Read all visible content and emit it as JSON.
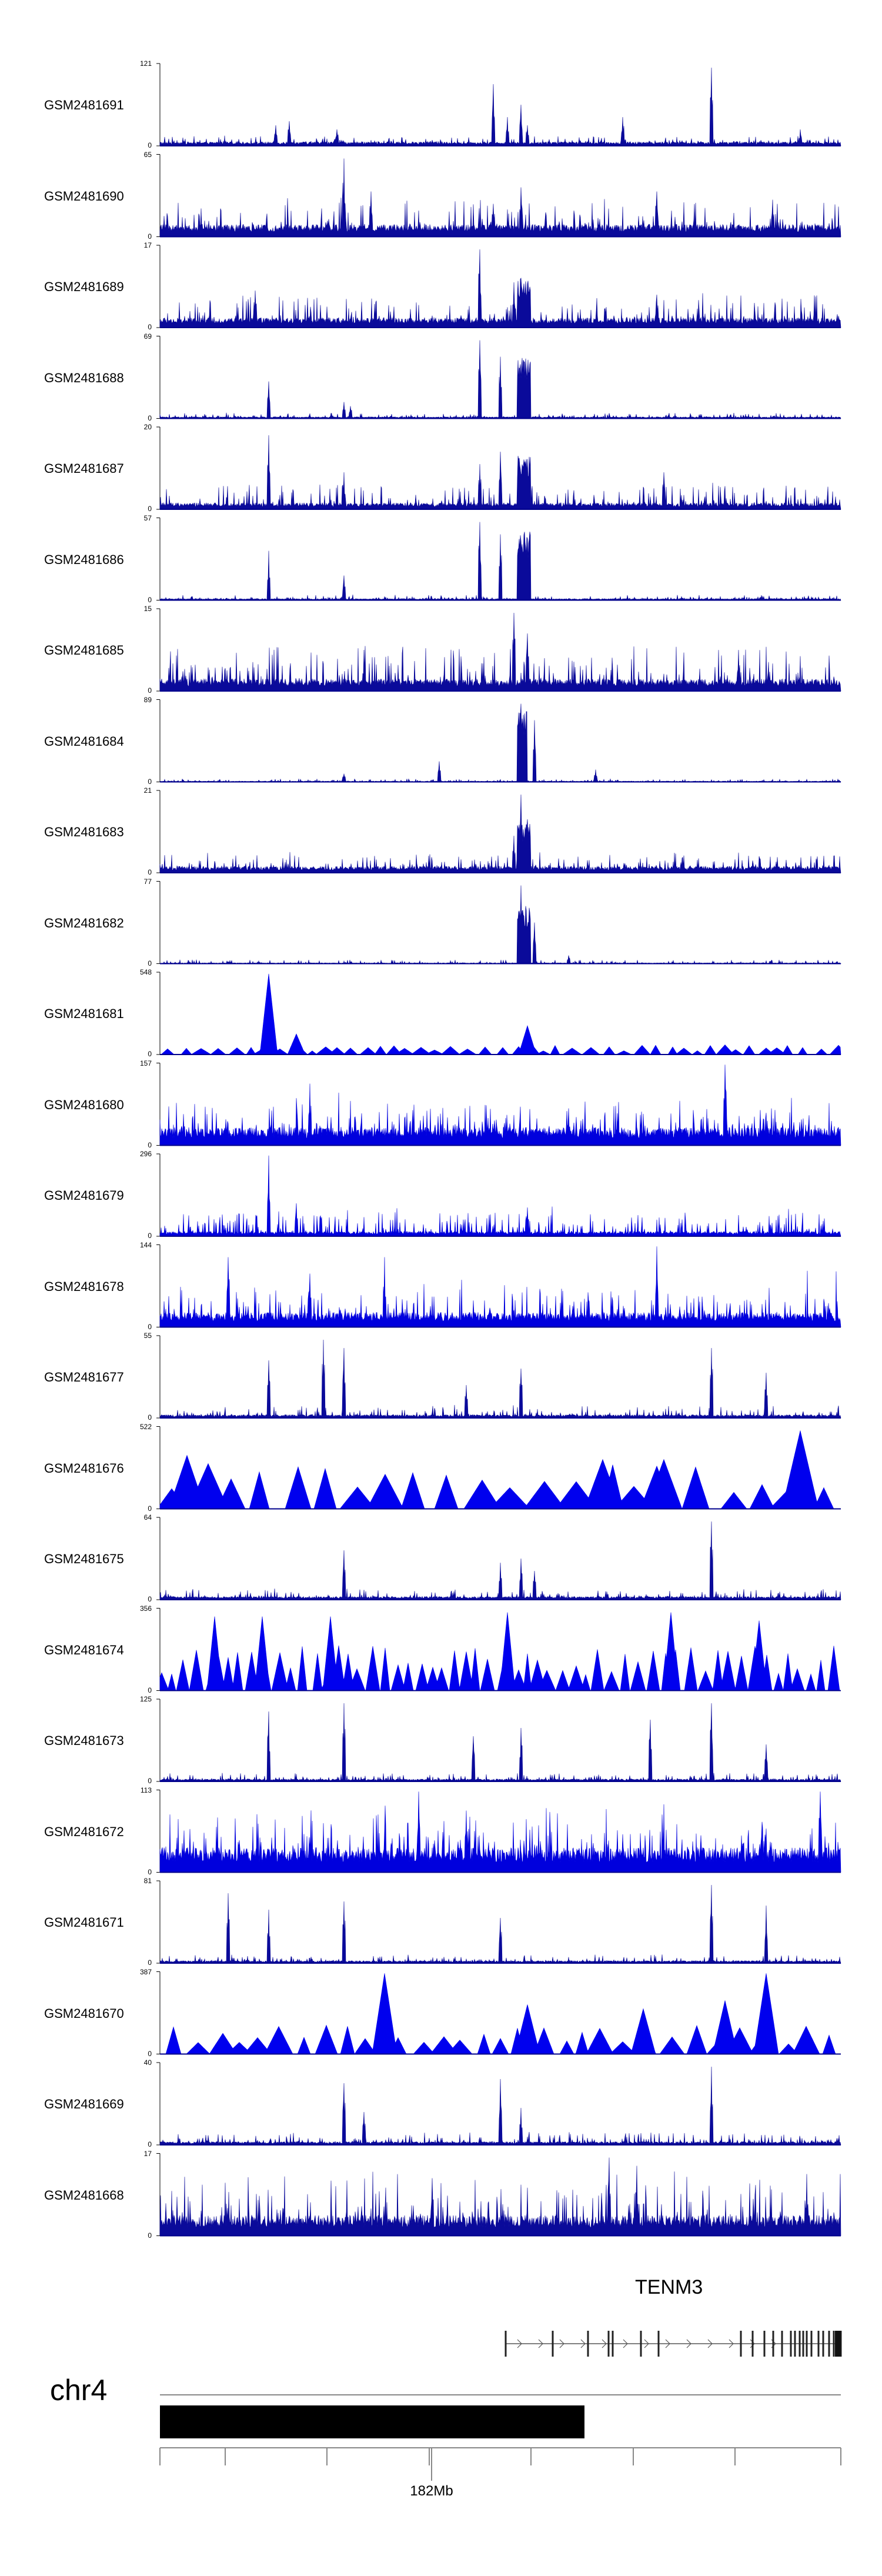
{
  "chart_data": {
    "type": "genome-browser-tracks",
    "chromosome": "chr4",
    "gene": "TENM3",
    "scale_tick_label": "182Mb",
    "tracks": [
      {
        "name": "GSM2481691",
        "ymax": "121",
        "ymin": "0",
        "style": "bars",
        "base": 0.05,
        "noise": 0.08,
        "peaks": [
          [
            0.17,
            0.25
          ],
          [
            0.19,
            0.3
          ],
          [
            0.26,
            0.2
          ],
          [
            0.49,
            0.75
          ],
          [
            0.51,
            0.35
          ],
          [
            0.53,
            0.5
          ],
          [
            0.54,
            0.25
          ],
          [
            0.68,
            0.35
          ],
          [
            0.81,
            0.95
          ],
          [
            0.94,
            0.2
          ]
        ],
        "cluster": []
      },
      {
        "name": "GSM2481690",
        "ymax": "65",
        "ymin": "0",
        "style": "dense",
        "base": 0.15,
        "noise": 0.35,
        "peaks": [
          [
            0.27,
            0.95
          ],
          [
            0.31,
            0.55
          ],
          [
            0.49,
            0.4
          ],
          [
            0.53,
            0.6
          ],
          [
            0.73,
            0.55
          ],
          [
            0.9,
            0.45
          ]
        ],
        "cluster": []
      },
      {
        "name": "GSM2481689",
        "ymax": "17",
        "ymin": "0",
        "style": "dense",
        "base": 0.12,
        "noise": 0.3,
        "peaks": [
          [
            0.47,
            0.95
          ],
          [
            0.52,
            0.55
          ],
          [
            0.53,
            0.6
          ],
          [
            0.14,
            0.45
          ],
          [
            0.73,
            0.4
          ]
        ],
        "cluster": [
          [
            0.525,
            0.545,
            0.6
          ]
        ]
      },
      {
        "name": "GSM2481688",
        "ymax": "69",
        "ymin": "0",
        "style": "bars",
        "base": 0.02,
        "noise": 0.05,
        "peaks": [
          [
            0.16,
            0.45
          ],
          [
            0.27,
            0.2
          ],
          [
            0.28,
            0.15
          ],
          [
            0.47,
            0.95
          ],
          [
            0.5,
            0.75
          ]
        ],
        "cluster": [
          [
            0.525,
            0.545,
            0.75
          ]
        ]
      },
      {
        "name": "GSM2481687",
        "ymax": "20",
        "ymin": "0",
        "style": "dense",
        "base": 0.08,
        "noise": 0.25,
        "peaks": [
          [
            0.16,
            0.9
          ],
          [
            0.27,
            0.45
          ],
          [
            0.47,
            0.55
          ],
          [
            0.5,
            0.7
          ],
          [
            0.74,
            0.45
          ]
        ],
        "cluster": [
          [
            0.525,
            0.545,
            0.65
          ]
        ]
      },
      {
        "name": "GSM2481686",
        "ymax": "57",
        "ymin": "0",
        "style": "bars",
        "base": 0.02,
        "noise": 0.05,
        "peaks": [
          [
            0.16,
            0.6
          ],
          [
            0.27,
            0.3
          ],
          [
            0.47,
            0.95
          ],
          [
            0.5,
            0.8
          ]
        ],
        "cluster": [
          [
            0.525,
            0.545,
            0.85
          ]
        ]
      },
      {
        "name": "GSM2481685",
        "ymax": "15",
        "ymin": "0",
        "style": "dense",
        "base": 0.15,
        "noise": 0.45,
        "peaks": [
          [
            0.52,
            0.95
          ],
          [
            0.54,
            0.7
          ],
          [
            0.3,
            0.5
          ],
          [
            0.85,
            0.5
          ]
        ],
        "cluster": []
      },
      {
        "name": "GSM2481684",
        "ymax": "89",
        "ymin": "0",
        "style": "bars",
        "base": 0.01,
        "noise": 0.03,
        "peaks": [
          [
            0.41,
            0.25
          ],
          [
            0.53,
            0.95
          ],
          [
            0.55,
            0.75
          ],
          [
            0.64,
            0.15
          ],
          [
            0.27,
            0.1
          ]
        ],
        "cluster": [
          [
            0.525,
            0.54,
            0.9
          ]
        ]
      },
      {
        "name": "GSM2481683",
        "ymax": "21",
        "ymin": "0",
        "style": "dense",
        "base": 0.08,
        "noise": 0.18,
        "peaks": [
          [
            0.53,
            0.95
          ],
          [
            0.54,
            0.65
          ],
          [
            0.52,
            0.45
          ]
        ],
        "cluster": [
          [
            0.525,
            0.545,
            0.6
          ]
        ]
      },
      {
        "name": "GSM2481682",
        "ymax": "77",
        "ymin": "0",
        "style": "bars",
        "base": 0.01,
        "noise": 0.04,
        "peaks": [
          [
            0.53,
            0.95
          ],
          [
            0.55,
            0.5
          ],
          [
            0.6,
            0.1
          ]
        ],
        "cluster": [
          [
            0.525,
            0.545,
            0.7
          ]
        ]
      },
      {
        "name": "GSM2481681",
        "ymax": "548",
        "ymin": "0",
        "style": "triangles",
        "spacing": 0.022,
        "tri": 0.12,
        "peaks": [
          [
            0.16,
            0.98
          ],
          [
            0.2,
            0.25
          ],
          [
            0.54,
            0.35
          ]
        ],
        "cluster": []
      },
      {
        "name": "GSM2481680",
        "ymax": "157",
        "ymin": "0",
        "style": "spiky",
        "base": 0.22,
        "noise": 0.35,
        "peaks": [
          [
            0.22,
            0.75
          ],
          [
            0.83,
            0.98
          ],
          [
            0.6,
            0.45
          ]
        ],
        "cluster": []
      },
      {
        "name": "GSM2481679",
        "ymax": "296",
        "ymin": "0",
        "style": "spiky",
        "base": 0.06,
        "noise": 0.25,
        "peaks": [
          [
            0.16,
            0.98
          ],
          [
            0.2,
            0.4
          ],
          [
            0.54,
            0.35
          ]
        ],
        "cluster": []
      },
      {
        "name": "GSM2481678",
        "ymax": "144",
        "ymin": "0",
        "style": "spiky",
        "base": 0.18,
        "noise": 0.35,
        "peaks": [
          [
            0.1,
            0.85
          ],
          [
            0.33,
            0.85
          ],
          [
            0.73,
            0.98
          ],
          [
            0.22,
            0.65
          ]
        ],
        "cluster": []
      },
      {
        "name": "GSM2481677",
        "ymax": "55",
        "ymin": "0",
        "style": "bars",
        "base": 0.04,
        "noise": 0.12,
        "peaks": [
          [
            0.16,
            0.7
          ],
          [
            0.24,
            0.95
          ],
          [
            0.27,
            0.85
          ],
          [
            0.45,
            0.4
          ],
          [
            0.53,
            0.6
          ],
          [
            0.81,
            0.85
          ],
          [
            0.89,
            0.55
          ]
        ],
        "cluster": []
      },
      {
        "name": "GSM2481676",
        "ymax": "522",
        "ymin": "0",
        "style": "triangles",
        "spacing": 0.045,
        "tri": 0.55,
        "peaks": [
          [
            0.94,
            0.95
          ],
          [
            0.04,
            0.65
          ],
          [
            0.65,
            0.6
          ],
          [
            0.74,
            0.6
          ]
        ],
        "cluster": []
      },
      {
        "name": "GSM2481675",
        "ymax": "64",
        "ymin": "0",
        "style": "bars",
        "base": 0.04,
        "noise": 0.1,
        "peaks": [
          [
            0.27,
            0.6
          ],
          [
            0.5,
            0.45
          ],
          [
            0.53,
            0.5
          ],
          [
            0.81,
            0.95
          ],
          [
            0.55,
            0.35
          ]
        ],
        "cluster": []
      },
      {
        "name": "GSM2481674",
        "ymax": "356",
        "ymin": "0",
        "style": "triangles",
        "spacing": 0.018,
        "tri": 0.55,
        "peaks": [
          [
            0.08,
            0.9
          ],
          [
            0.15,
            0.9
          ],
          [
            0.25,
            0.9
          ],
          [
            0.51,
            0.95
          ],
          [
            0.75,
            0.95
          ],
          [
            0.88,
            0.85
          ]
        ],
        "cluster": []
      },
      {
        "name": "GSM2481673",
        "ymax": "125",
        "ymin": "0",
        "style": "bars",
        "base": 0.03,
        "noise": 0.08,
        "peaks": [
          [
            0.16,
            0.85
          ],
          [
            0.27,
            0.95
          ],
          [
            0.46,
            0.55
          ],
          [
            0.53,
            0.65
          ],
          [
            0.72,
            0.75
          ],
          [
            0.81,
            0.95
          ],
          [
            0.89,
            0.45
          ]
        ],
        "cluster": []
      },
      {
        "name": "GSM2481672",
        "ymax": "113",
        "ymin": "0",
        "style": "spiky",
        "base": 0.3,
        "noise": 0.45,
        "peaks": [
          [
            0.38,
            0.98
          ],
          [
            0.97,
            0.98
          ],
          [
            0.45,
            0.75
          ]
        ],
        "cluster": []
      },
      {
        "name": "GSM2481671",
        "ymax": "81",
        "ymin": "0",
        "style": "bars",
        "base": 0.03,
        "noise": 0.08,
        "peaks": [
          [
            0.1,
            0.85
          ],
          [
            0.16,
            0.65
          ],
          [
            0.27,
            0.75
          ],
          [
            0.5,
            0.55
          ],
          [
            0.81,
            0.95
          ],
          [
            0.89,
            0.7
          ]
        ],
        "cluster": []
      },
      {
        "name": "GSM2481670",
        "ymax": "387",
        "ymin": "0",
        "style": "triangles",
        "spacing": 0.03,
        "tri": 0.35,
        "peaks": [
          [
            0.33,
            0.98
          ],
          [
            0.89,
            0.98
          ],
          [
            0.83,
            0.65
          ],
          [
            0.54,
            0.6
          ],
          [
            0.71,
            0.55
          ]
        ],
        "cluster": []
      },
      {
        "name": "GSM2481669",
        "ymax": "40",
        "ymin": "0",
        "style": "bars",
        "base": 0.04,
        "noise": 0.12,
        "peaks": [
          [
            0.27,
            0.75
          ],
          [
            0.5,
            0.8
          ],
          [
            0.53,
            0.45
          ],
          [
            0.81,
            0.95
          ],
          [
            0.3,
            0.4
          ]
        ],
        "cluster": []
      },
      {
        "name": "GSM2481668",
        "ymax": "17",
        "ymin": "0",
        "style": "dense",
        "base": 0.25,
        "noise": 0.55,
        "peaks": [
          [
            0.66,
            0.95
          ],
          [
            0.7,
            0.85
          ],
          [
            0.4,
            0.7
          ],
          [
            0.95,
            0.75
          ]
        ],
        "cluster": []
      }
    ]
  }
}
